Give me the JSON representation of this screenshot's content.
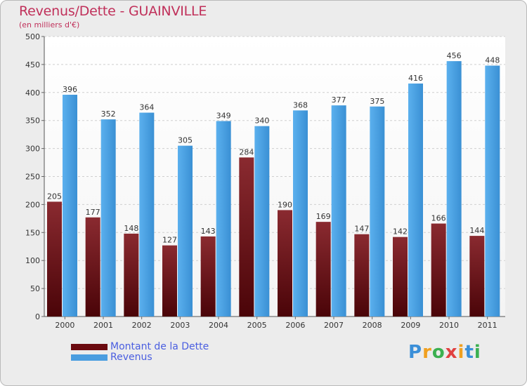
{
  "header": {
    "title": "Revenus/Dette - GUAINVILLE",
    "subtitle": "(en milliers d'€)"
  },
  "legend": [
    {
      "label": "Montant de la Dette",
      "color": "#6b0a0f"
    },
    {
      "label": "Revenus",
      "color": "#4a9de0"
    }
  ],
  "logo": {
    "text": "Proxiti",
    "letters": [
      {
        "ch": "P",
        "color": "#3b8fd8"
      },
      {
        "ch": "r",
        "color": "#f0a020"
      },
      {
        "ch": "o",
        "color": "#3bb050"
      },
      {
        "ch": "x",
        "color": "#e04040"
      },
      {
        "ch": "i",
        "color": "#f0a020"
      },
      {
        "ch": "t",
        "color": "#3b8fd8"
      },
      {
        "ch": "i",
        "color": "#3bb050"
      }
    ]
  },
  "chart_data": {
    "type": "bar",
    "categories": [
      "2000",
      "2001",
      "2002",
      "2003",
      "2004",
      "2005",
      "2006",
      "2007",
      "2008",
      "2009",
      "2010",
      "2011"
    ],
    "series": [
      {
        "name": "Montant de la Dette",
        "color": "#7a1c22",
        "values": [
          205,
          177,
          148,
          127,
          143,
          284,
          190,
          169,
          147,
          142,
          166,
          144
        ]
      },
      {
        "name": "Revenus",
        "color": "#4da3e4",
        "values": [
          396,
          352,
          364,
          305,
          349,
          340,
          368,
          377,
          375,
          416,
          456,
          448
        ]
      }
    ],
    "ylim": [
      0,
      500
    ],
    "yticks": [
      0,
      50,
      100,
      150,
      200,
      250,
      300,
      350,
      400,
      450,
      500
    ],
    "grid": true,
    "title": "Revenus/Dette - GUAINVILLE",
    "ylabel": "(en milliers d'€)",
    "xlabel": ""
  }
}
